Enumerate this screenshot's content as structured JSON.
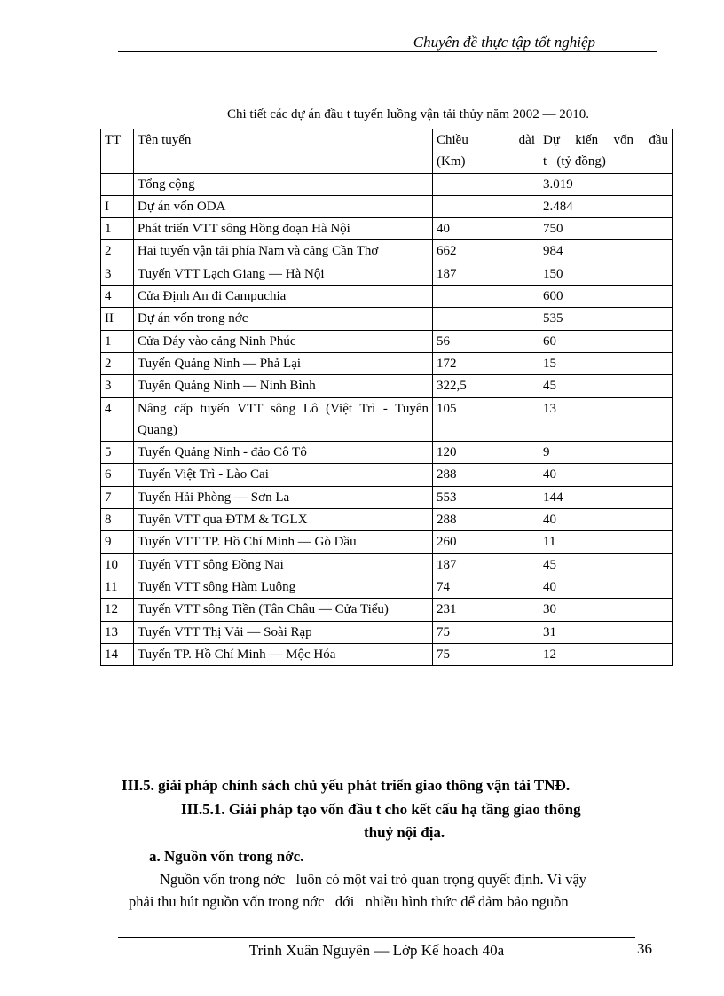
{
  "header": {
    "title": "Chuyên đề thực tập tốt nghiệp"
  },
  "table": {
    "caption": "Chi tiết các dự án đầu t   tuyến luồng vận tải thủy năm 2002 — 2010.",
    "columns": [
      "TT",
      "Tên tuyến",
      "Chiều dài (Km)",
      "Dự kiến vốn đầu t   (tỷ đồng)"
    ],
    "col3_line1a": "Chiều",
    "col3_line1b": "dài",
    "col3_line2": "(Km)",
    "col4_line1": "Dự kiến vốn đầu",
    "col4_line2": "t   (tỷ đồng)",
    "rows": [
      [
        "",
        "Tổng cộng",
        "",
        "3.019"
      ],
      [
        "I",
        "Dự án vốn ODA",
        "",
        "2.484"
      ],
      [
        "1",
        "Phát triển VTT sông Hồng đoạn Hà Nội",
        "40",
        "750"
      ],
      [
        "2",
        "Hai tuyến vận tải phía Nam và cảng Cần Thơ",
        "662",
        "984"
      ],
      [
        "3",
        "Tuyến VTT Lạch Giang — Hà Nội",
        "187",
        "150"
      ],
      [
        "4",
        "Cửa Định An đi Campuchia",
        "",
        "600"
      ],
      [
        "II",
        "Dự án vốn trong nớc",
        "",
        "535"
      ],
      [
        "1",
        "Cửa Đáy vào cảng Ninh Phúc",
        "56",
        "60"
      ],
      [
        "2",
        "Tuyến Quảng Ninh — Phả Lại",
        "172",
        "15"
      ],
      [
        "3",
        "Tuyến Quảng Ninh — Ninh Bình",
        "322,5",
        "45"
      ],
      [
        "4",
        "Nâng cấp tuyến VTT sông Lô (Việt Trì - Tuyên Quang)",
        "105",
        "13"
      ],
      [
        "5",
        "Tuyến Quảng Ninh - đảo Cô Tô",
        "120",
        "9"
      ],
      [
        "6",
        "Tuyến Việt Trì - Lào Cai",
        "288",
        "40"
      ],
      [
        "7",
        "Tuyến Hải Phòng — Sơn La",
        "553",
        "144"
      ],
      [
        "8",
        "Tuyến VTT qua ĐTM & TGLX",
        "288",
        "40"
      ],
      [
        "9",
        "Tuyến VTT TP. Hồ Chí Minh — Gò Dầu",
        "260",
        "11"
      ],
      [
        "10",
        "Tuyến VTT sông Đồng Nai",
        "187",
        "45"
      ],
      [
        "11",
        "Tuyến VTT sông Hàm Luông",
        "74",
        "40"
      ],
      [
        "12",
        "Tuyến VTT sông Tiền (Tân Châu — Cửa Tiểu)",
        "231",
        "30"
      ],
      [
        "13",
        "Tuyến VTT Thị Vải — Soài Rạp",
        "75",
        "31"
      ],
      [
        "14",
        "Tuyến TP. Hồ Chí Minh — Mộc Hóa",
        "75",
        "12"
      ]
    ]
  },
  "section": {
    "h1": "III.5. giải pháp  chính sách chủ yếu phát triển giao thông vận tải TNĐ.",
    "h2a": "III.5.1. Giải pháp tạo vốn đầu t   cho kết cấu hạ tầng giao thông",
    "h2b": "thuỷ nội địa.",
    "h3": "a. Nguồn vốn trong nớc.",
    "p1": "Nguồn vốn trong nớc   luôn có một vai trò quan trọng quyết định. Vì vậy",
    "p2": "phải thu hút nguồn vốn trong nớc   dới   nhiều hình thức để đảm bảo nguồn"
  },
  "footer": {
    "author": "Trinh Xuân Nguyên — Lớp Kế hoach 40a",
    "page_number": "36"
  }
}
